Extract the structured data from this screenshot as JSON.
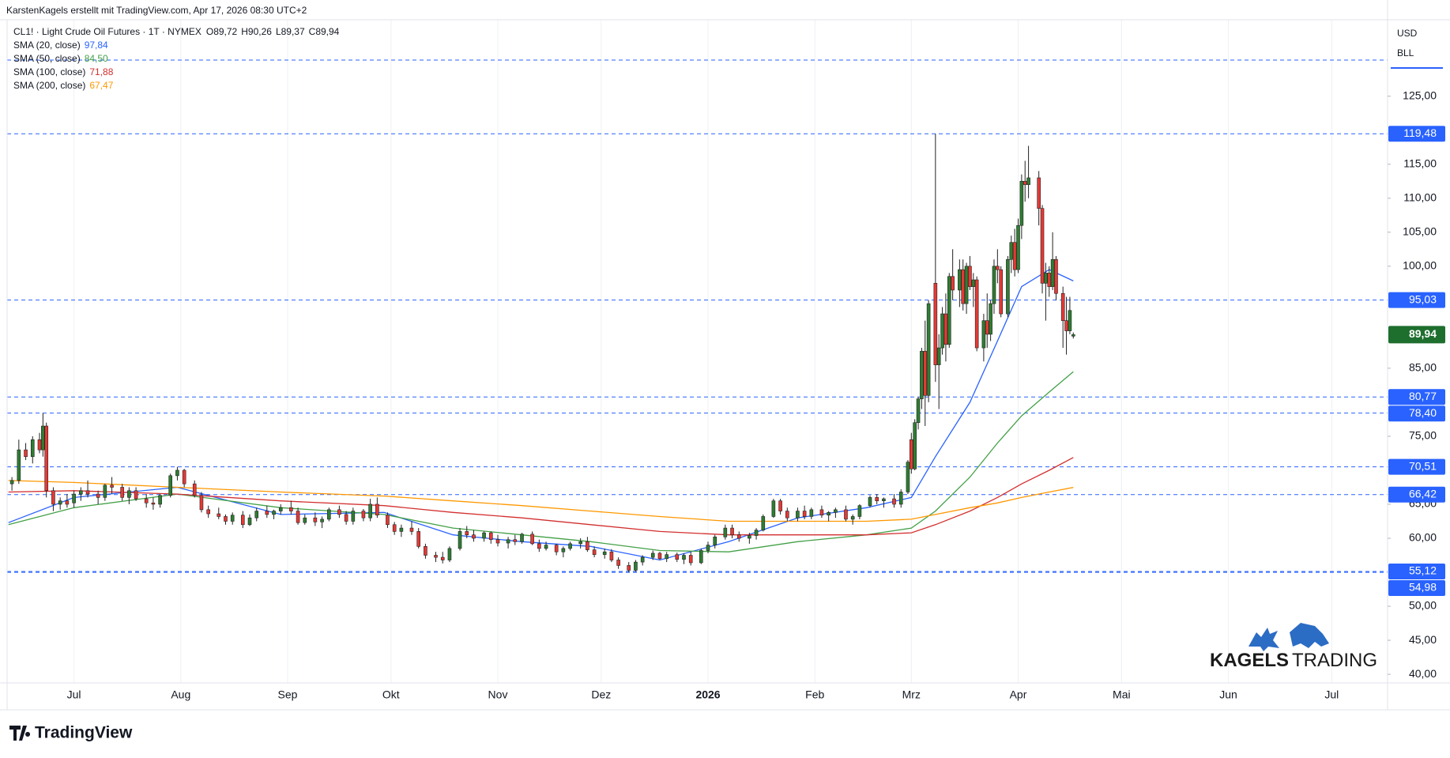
{
  "header": "KarstenKagels erstellt mit TradingView.com, Apr 17, 2026 08:30 UTC+2",
  "chart_data": {
    "type": "candlestick",
    "symbol": "CL1! · Light Crude Oil Futures · 1T · NYMEX",
    "ohlc_prefixes": [
      "O",
      "H",
      "L",
      "C"
    ],
    "last_labels": {
      "open": "89,72",
      "high": "90,26",
      "low": "89,37",
      "close": "89,94"
    },
    "last_price_label": "89,94",
    "last_price_color": "#1e6e2e",
    "currency": "USD",
    "unit": "BLL",
    "up_color": "#2e7d32",
    "down_color": "#e53935",
    "x": [
      -18,
      -16,
      -14,
      -12,
      -10,
      -9,
      -8,
      -6,
      -4,
      -2,
      0,
      2,
      4,
      7,
      9,
      11,
      14,
      16,
      18,
      21,
      23,
      25,
      28,
      30,
      32,
      35,
      37,
      39,
      42,
      44,
      46,
      49,
      51,
      53,
      56,
      58,
      60,
      63,
      65,
      67,
      70,
      72,
      74,
      77,
      79,
      81,
      84,
      86,
      88,
      91,
      93,
      95,
      98,
      100,
      102,
      105,
      107,
      109,
      112,
      114,
      116,
      119,
      121,
      123,
      126,
      128,
      130,
      133,
      135,
      137,
      140,
      142,
      144,
      147,
      149,
      151,
      154,
      156,
      158,
      161,
      163,
      165,
      168,
      170,
      172,
      175,
      177,
      179,
      182,
      184,
      186,
      189,
      191,
      193,
      196,
      198,
      200,
      203,
      205,
      207,
      210,
      212,
      214,
      217,
      219,
      221,
      224,
      226,
      228,
      231,
      233,
      235,
      238,
      240,
      242,
      243,
      244,
      245,
      246,
      247,
      248,
      250,
      251,
      252,
      253,
      254,
      255,
      257,
      258,
      259,
      260,
      261,
      262,
      264,
      265,
      266,
      267,
      268,
      269,
      271,
      272,
      273,
      274,
      275,
      276,
      277,
      280,
      281,
      282,
      283,
      284,
      285,
      287,
      288,
      289,
      290
    ],
    "open": [
      68.0,
      68.5,
      73.0,
      72.0,
      74.5,
      73.0,
      76.5,
      67.0,
      65.0,
      65.5,
      65.2,
      66.5,
      67.0,
      66.5,
      66.0,
      67.8,
      67.5,
      66.0,
      67.0,
      65.8,
      65.2,
      65.0,
      66.3,
      69.2,
      70.0,
      68.0,
      66.3,
      64.2,
      63.6,
      63.2,
      62.5,
      63.4,
      62.0,
      63.0,
      64.0,
      63.5,
      64.0,
      64.5,
      64.0,
      62.3,
      63.0,
      62.4,
      62.8,
      64.2,
      63.5,
      62.5,
      64.0,
      63.0,
      65.0,
      63.4,
      62.0,
      61.0,
      61.5,
      61.0,
      58.8,
      57.5,
      57.2,
      56.8,
      58.5,
      61.0,
      60.5,
      60.0,
      60.8,
      59.8,
      59.3,
      59.8,
      59.5,
      60.6,
      59.2,
      58.5,
      59.0,
      58.0,
      58.5,
      59.2,
      59.5,
      58.3,
      57.6,
      58.0,
      56.8,
      56.0,
      55.3,
      56.5,
      57.2,
      57.8,
      57.0,
      57.6,
      56.9,
      57.5,
      56.4,
      58.2,
      59.0,
      60.2,
      61.5,
      60.5,
      60.0,
      60.4,
      61.2,
      63.2,
      65.5,
      64.0,
      63.0,
      64.0,
      63.2,
      64.2,
      63.4,
      63.8,
      64.2,
      62.8,
      63.2,
      64.8,
      66.0,
      65.5,
      65.8,
      65.0,
      66.8,
      74.5,
      70.2,
      77.0,
      80.5,
      87.5,
      81.0,
      97.5,
      85.5,
      88.0,
      93.0,
      88.5,
      98.5,
      96.5,
      99.5,
      94.5,
      100.0,
      97.0,
      98.0,
      88.0,
      92.0,
      90.0,
      94.5,
      100.0,
      99.5,
      93.0,
      101.0,
      103.5,
      99.5,
      106.0,
      112.5,
      112.0,
      113.0,
      108.5,
      97.5,
      99.0,
      97.0,
      101.0,
      96.0,
      92.0,
      90.5,
      89.72
    ],
    "high": [
      69.0,
      74.5,
      74.0,
      75.0,
      75.5,
      78.4,
      77.0,
      67.5,
      66.0,
      66.5,
      67.0,
      67.5,
      68.5,
      67.0,
      68.0,
      69.0,
      68.0,
      67.5,
      67.5,
      66.5,
      66.0,
      66.5,
      69.5,
      70.5,
      70.2,
      68.5,
      66.8,
      64.8,
      64.5,
      63.5,
      63.8,
      64.0,
      63.5,
      64.5,
      64.8,
      64.2,
      65.0,
      65.5,
      64.5,
      63.5,
      63.8,
      63.2,
      64.5,
      64.8,
      64.0,
      64.5,
      64.3,
      65.8,
      66.0,
      63.8,
      62.4,
      62.0,
      62.5,
      61.5,
      59.2,
      58.0,
      58.0,
      58.8,
      61.5,
      61.8,
      61.2,
      61.0,
      61.0,
      60.5,
      60.2,
      60.5,
      60.8,
      61.0,
      59.8,
      59.5,
      59.2,
      58.8,
      59.5,
      60.0,
      60.2,
      58.8,
      58.5,
      58.4,
      57.2,
      56.5,
      56.8,
      57.5,
      58.2,
      58.0,
      58.0,
      57.9,
      57.8,
      58.0,
      58.5,
      59.5,
      60.5,
      62.0,
      62.0,
      61.0,
      60.8,
      61.5,
      63.5,
      65.8,
      65.8,
      64.5,
      64.5,
      64.8,
      64.5,
      64.8,
      64.0,
      64.5,
      64.8,
      63.5,
      65.0,
      66.3,
      66.5,
      66.0,
      66.5,
      67.2,
      71.5,
      75.5,
      77.5,
      80.8,
      88.0,
      92.0,
      95.0,
      119.48,
      90.0,
      94.0,
      96.0,
      99.0,
      102.5,
      101.0,
      101.0,
      100.5,
      101.5,
      99.0,
      98.5,
      93.0,
      96.0,
      95.0,
      101.0,
      102.5,
      100.0,
      101.5,
      104.5,
      105.5,
      107.0,
      113.5,
      115.5,
      117.7,
      114.0,
      109.0,
      100.5,
      100.0,
      105.0,
      101.5,
      97.0,
      95.5,
      95.5,
      90.26
    ],
    "low": [
      67.0,
      68.0,
      71.5,
      71.0,
      72.5,
      72.0,
      66.0,
      64.0,
      64.2,
      64.5,
      64.5,
      65.5,
      66.0,
      65.0,
      65.5,
      66.5,
      65.5,
      65.0,
      65.5,
      64.5,
      64.2,
      64.5,
      66.0,
      68.5,
      67.5,
      66.0,
      63.8,
      63.0,
      62.8,
      62.0,
      62.0,
      61.5,
      61.8,
      62.5,
      63.0,
      62.8,
      63.5,
      63.5,
      62.0,
      62.0,
      61.8,
      61.5,
      62.5,
      63.0,
      62.0,
      62.0,
      62.5,
      62.5,
      63.0,
      61.5,
      60.5,
      60.2,
      60.5,
      58.5,
      57.0,
      56.5,
      56.3,
      56.5,
      58.2,
      60.0,
      59.5,
      59.5,
      59.2,
      58.8,
      58.5,
      59.0,
      59.2,
      59.0,
      58.0,
      58.2,
      57.5,
      57.2,
      58.2,
      58.5,
      58.0,
      57.2,
      57.0,
      56.5,
      55.5,
      55.0,
      55.1,
      56.0,
      56.8,
      56.8,
      56.5,
      56.5,
      56.2,
      56.0,
      56.2,
      57.8,
      58.5,
      59.8,
      60.0,
      59.5,
      59.2,
      59.8,
      61.0,
      63.0,
      63.5,
      62.5,
      62.5,
      62.8,
      62.8,
      63.0,
      62.5,
      63.0,
      62.5,
      62.0,
      62.8,
      64.5,
      65.0,
      64.5,
      64.5,
      64.5,
      66.5,
      69.5,
      70.0,
      76.0,
      79.0,
      76.5,
      80.0,
      83.0,
      79.0,
      87.0,
      86.0,
      88.0,
      95.0,
      94.0,
      93.5,
      93.0,
      96.5,
      94.0,
      87.5,
      86.0,
      88.0,
      89.0,
      93.0,
      97.5,
      92.5,
      92.5,
      99.0,
      98.5,
      99.0,
      104.0,
      109.5,
      110.0,
      106.0,
      96.0,
      92.0,
      95.5,
      96.5,
      95.0,
      88.0,
      87.0,
      90.0,
      89.37
    ],
    "close": [
      68.5,
      73.0,
      72.0,
      74.5,
      73.0,
      76.5,
      67.0,
      65.0,
      65.5,
      65.0,
      66.5,
      67.0,
      66.5,
      66.0,
      67.8,
      67.5,
      66.0,
      67.0,
      65.8,
      65.2,
      65.0,
      66.3,
      69.2,
      70.0,
      68.0,
      66.3,
      64.2,
      63.6,
      63.2,
      62.5,
      63.4,
      62.0,
      63.0,
      64.0,
      63.5,
      64.0,
      64.5,
      64.0,
      62.3,
      63.0,
      62.4,
      62.8,
      64.2,
      63.5,
      62.5,
      64.0,
      63.0,
      65.0,
      63.4,
      62.0,
      61.0,
      61.5,
      61.0,
      58.8,
      57.5,
      57.2,
      56.8,
      58.5,
      61.0,
      60.5,
      60.0,
      60.8,
      59.8,
      59.3,
      59.8,
      59.5,
      60.6,
      59.2,
      58.5,
      59.0,
      58.0,
      58.5,
      59.2,
      59.5,
      58.3,
      57.6,
      58.0,
      56.8,
      56.0,
      55.3,
      56.5,
      57.2,
      57.8,
      57.0,
      57.6,
      56.9,
      57.5,
      56.4,
      58.2,
      59.0,
      60.2,
      61.5,
      60.5,
      60.0,
      60.4,
      61.2,
      63.2,
      65.5,
      64.0,
      63.0,
      64.0,
      63.2,
      64.2,
      63.4,
      63.8,
      64.2,
      62.8,
      63.2,
      64.8,
      66.0,
      65.5,
      65.8,
      65.0,
      66.8,
      71.2,
      70.2,
      77.0,
      80.5,
      87.5,
      81.0,
      94.5,
      85.5,
      88.0,
      93.0,
      88.5,
      98.5,
      96.5,
      99.5,
      94.5,
      100.0,
      97.0,
      98.0,
      88.0,
      92.0,
      90.0,
      94.5,
      100.0,
      99.5,
      93.0,
      101.0,
      103.5,
      99.5,
      106.0,
      112.5,
      112.0,
      113.0,
      108.5,
      97.5,
      99.0,
      97.0,
      101.0,
      96.0,
      92.0,
      90.5,
      93.5,
      89.94
    ],
    "indicators": [
      {
        "name": "SMA (20, close)",
        "color": "#2962ff",
        "last_label": "97,84",
        "x": [
          -19,
          0,
          30,
          60,
          90,
          110,
          130,
          150,
          170,
          190,
          210,
          230,
          243,
          250,
          260,
          268,
          275,
          283,
          290
        ],
        "values": [
          62.3,
          66.0,
          67.5,
          63.5,
          63.8,
          60.5,
          59.5,
          58.8,
          56.8,
          59.5,
          63.0,
          64.5,
          66.0,
          72.0,
          80.0,
          89.0,
          97.0,
          99.5,
          97.84
        ]
      },
      {
        "name": "SMA (50, close)",
        "color": "#43a047",
        "last_label": "84,50",
        "x": [
          -19,
          0,
          30,
          60,
          90,
          110,
          130,
          150,
          170,
          190,
          210,
          230,
          243,
          250,
          260,
          268,
          275,
          283,
          290
        ],
        "values": [
          62.0,
          64.5,
          66.5,
          64.5,
          63.5,
          61.5,
          60.5,
          59.5,
          58.2,
          58.0,
          59.5,
          60.5,
          61.5,
          64.0,
          69.0,
          74.0,
          78.0,
          81.5,
          84.5
        ]
      },
      {
        "name": "SMA (100, close)",
        "color": "#d32f2f",
        "last_label": "71,88",
        "x": [
          -19,
          0,
          30,
          60,
          90,
          110,
          130,
          150,
          170,
          190,
          210,
          230,
          243,
          250,
          260,
          268,
          275,
          283,
          290
        ],
        "values": [
          66.8,
          67.0,
          66.5,
          65.5,
          64.8,
          63.8,
          63.0,
          62.0,
          61.0,
          60.5,
          60.5,
          60.5,
          60.8,
          62.0,
          64.0,
          66.0,
          68.0,
          70.0,
          71.88
        ]
      },
      {
        "name": "SMA (200, close)",
        "color": "#ff9800",
        "last_label": "67,47",
        "x": [
          -19,
          0,
          30,
          60,
          90,
          110,
          130,
          150,
          170,
          190,
          210,
          230,
          243,
          250,
          260,
          268,
          275,
          283,
          290
        ],
        "values": [
          68.5,
          68.2,
          67.5,
          66.8,
          66.2,
          65.5,
          64.8,
          64.0,
          63.2,
          62.5,
          62.5,
          62.5,
          62.8,
          63.5,
          64.5,
          65.2,
          66.0,
          66.8,
          67.47
        ]
      }
    ],
    "levels": {
      "color": "#2962ff",
      "values": [
        130.31,
        119.48,
        95.03,
        80.77,
        78.4,
        70.51,
        66.42,
        55.12,
        54.98
      ],
      "value_labels": [
        null,
        "119,48",
        "95,03",
        "80,77",
        "78,40",
        "70,51",
        "66,42",
        "55,12",
        "54,98"
      ]
    },
    "xlim": [
      -19.4,
      381.2
    ],
    "xticks": [
      {
        "value": 0,
        "label": "Jul"
      },
      {
        "value": 31,
        "label": "Aug"
      },
      {
        "value": 62,
        "label": "Sep"
      },
      {
        "value": 92,
        "label": "Okt"
      },
      {
        "value": 123,
        "label": "Nov"
      },
      {
        "value": 153,
        "label": "Dez"
      },
      {
        "value": 184,
        "label": "2026"
      },
      {
        "value": 215,
        "label": "Feb"
      },
      {
        "value": 243,
        "label": "Mrz"
      },
      {
        "value": 274,
        "label": "Apr"
      },
      {
        "value": 304,
        "label": "Mai"
      },
      {
        "value": 335,
        "label": "Jun"
      },
      {
        "value": 365,
        "label": "Jul"
      }
    ],
    "ylim": [
      38.73,
      135.08
    ],
    "yticks": [
      {
        "value": 40,
        "label": "40,00"
      },
      {
        "value": 45,
        "label": "45,00"
      },
      {
        "value": 50,
        "label": "50,00"
      },
      {
        "value": 60,
        "label": "60,00"
      },
      {
        "value": 65,
        "label": "65,00"
      },
      {
        "value": 75,
        "label": "75,00"
      },
      {
        "value": 85,
        "label": "85,00"
      },
      {
        "value": 100,
        "label": "100,00"
      },
      {
        "value": 105,
        "label": "105,00"
      },
      {
        "value": 110,
        "label": "110,00"
      },
      {
        "value": 115,
        "label": "115,00"
      },
      {
        "value": 125,
        "label": "125,00"
      }
    ],
    "grid": {
      "x": true,
      "y": false
    }
  },
  "watermark": {
    "left": "KAGELS",
    "right": "TRADING"
  },
  "footer": "TradingView"
}
